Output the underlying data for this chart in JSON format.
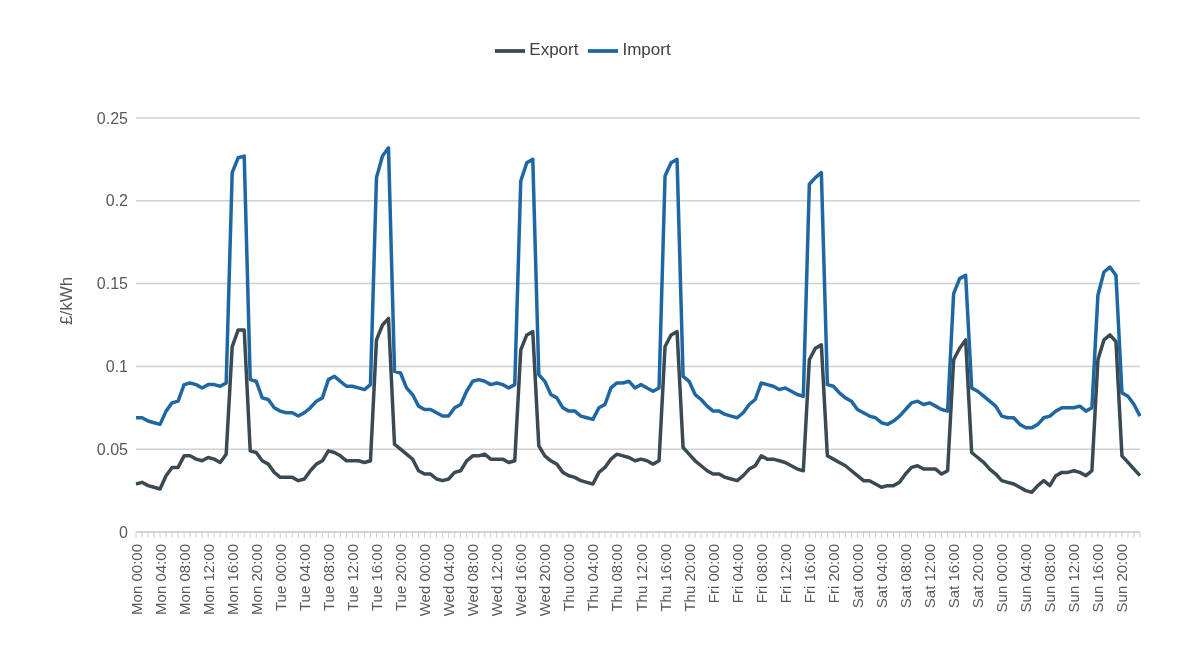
{
  "chart_data": {
    "type": "line",
    "ylabel": "£/kWh",
    "categories": [
      "Mon 00:00",
      null,
      null,
      null,
      "Mon 04:00",
      null,
      null,
      null,
      "Mon 08:00",
      null,
      null,
      null,
      "Mon 12:00",
      null,
      null,
      null,
      "Mon 16:00",
      null,
      null,
      null,
      "Mon 20:00",
      null,
      null,
      null,
      "Tue 00:00",
      null,
      null,
      null,
      "Tue 04:00",
      null,
      null,
      null,
      "Tue 08:00",
      null,
      null,
      null,
      "Tue 12:00",
      null,
      null,
      null,
      "Tue 16:00",
      null,
      null,
      null,
      "Tue 20:00",
      null,
      null,
      null,
      "Wed 00:00",
      null,
      null,
      null,
      "Wed 04:00",
      null,
      null,
      null,
      "Wed 08:00",
      null,
      null,
      null,
      "Wed 12:00",
      null,
      null,
      null,
      "Wed 16:00",
      null,
      null,
      null,
      "Wed 20:00",
      null,
      null,
      null,
      "Thu 00:00",
      null,
      null,
      null,
      "Thu 04:00",
      null,
      null,
      null,
      "Thu 08:00",
      null,
      null,
      null,
      "Thu 12:00",
      null,
      null,
      null,
      "Thu 16:00",
      null,
      null,
      null,
      "Thu 20:00",
      null,
      null,
      null,
      "Fri 00:00",
      null,
      null,
      null,
      "Fri 04:00",
      null,
      null,
      null,
      "Fri 08:00",
      null,
      null,
      null,
      "Fri 12:00",
      null,
      null,
      null,
      "Fri 16:00",
      null,
      null,
      null,
      "Fri 20:00",
      null,
      null,
      null,
      "Sat 00:00",
      null,
      null,
      null,
      "Sat 04:00",
      null,
      null,
      null,
      "Sat 08:00",
      null,
      null,
      null,
      "Sat 12:00",
      null,
      null,
      null,
      "Sat 16:00",
      null,
      null,
      null,
      "Sat 20:00",
      null,
      null,
      null,
      "Sun 00:00",
      null,
      null,
      null,
      "Sun 04:00",
      null,
      null,
      null,
      "Sun 08:00",
      null,
      null,
      null,
      "Sun 12:00",
      null,
      null,
      null,
      "Sun 16:00",
      null,
      null,
      null,
      "Sun 20:00",
      null,
      null,
      null
    ],
    "series": [
      {
        "name": "Import",
        "color": "#1f67a3",
        "values": [
          0.069,
          0.069,
          0.067,
          0.066,
          0.065,
          0.073,
          0.078,
          0.079,
          0.089,
          0.09,
          0.089,
          0.087,
          0.089,
          0.089,
          0.088,
          0.09,
          0.217,
          0.226,
          0.227,
          0.092,
          0.091,
          0.081,
          0.08,
          0.075,
          0.073,
          0.072,
          0.072,
          0.07,
          0.072,
          0.075,
          0.079,
          0.081,
          0.092,
          0.094,
          0.091,
          0.088,
          0.088,
          0.087,
          0.086,
          0.089,
          0.214,
          0.227,
          0.232,
          0.097,
          0.096,
          0.087,
          0.083,
          0.076,
          0.074,
          0.074,
          0.072,
          0.07,
          0.07,
          0.075,
          0.077,
          0.085,
          0.091,
          0.092,
          0.091,
          0.089,
          0.09,
          0.089,
          0.087,
          0.089,
          0.212,
          0.223,
          0.225,
          0.095,
          0.091,
          0.083,
          0.081,
          0.075,
          0.073,
          0.073,
          0.07,
          0.069,
          0.068,
          0.075,
          0.077,
          0.087,
          0.09,
          0.09,
          0.091,
          0.087,
          0.089,
          0.087,
          0.085,
          0.087,
          0.215,
          0.223,
          0.225,
          0.094,
          0.091,
          0.083,
          0.08,
          0.076,
          0.073,
          0.073,
          0.071,
          0.07,
          0.069,
          0.072,
          0.077,
          0.08,
          0.09,
          0.089,
          0.088,
          0.086,
          0.087,
          0.085,
          0.083,
          0.082,
          0.21,
          0.214,
          0.217,
          0.089,
          0.088,
          0.084,
          0.081,
          0.079,
          0.074,
          0.072,
          0.07,
          0.069,
          0.066,
          0.065,
          0.067,
          0.07,
          0.074,
          0.078,
          0.079,
          0.077,
          0.078,
          0.076,
          0.074,
          0.073,
          0.144,
          0.153,
          0.155,
          0.087,
          0.085,
          0.082,
          0.079,
          0.076,
          0.07,
          0.069,
          0.069,
          0.065,
          0.063,
          0.063,
          0.065,
          0.069,
          0.07,
          0.073,
          0.075,
          0.075,
          0.075,
          0.076,
          0.073,
          0.075,
          0.143,
          0.157,
          0.16,
          0.155,
          0.084,
          0.082,
          0.077,
          0.07
        ]
      },
      {
        "name": "Export",
        "color": "#3a4a55",
        "values": [
          0.029,
          0.03,
          0.028,
          0.027,
          0.026,
          0.034,
          0.039,
          0.039,
          0.046,
          0.046,
          0.044,
          0.043,
          0.045,
          0.044,
          0.042,
          0.047,
          0.112,
          0.122,
          0.122,
          0.049,
          0.048,
          0.043,
          0.041,
          0.036,
          0.033,
          0.033,
          0.033,
          0.031,
          0.032,
          0.037,
          0.041,
          0.043,
          0.049,
          0.048,
          0.046,
          0.043,
          0.043,
          0.043,
          0.042,
          0.043,
          0.116,
          0.125,
          0.129,
          0.053,
          0.05,
          0.047,
          0.044,
          0.037,
          0.035,
          0.035,
          0.032,
          0.031,
          0.032,
          0.036,
          0.037,
          0.043,
          0.046,
          0.046,
          0.047,
          0.044,
          0.044,
          0.044,
          0.042,
          0.043,
          0.11,
          0.119,
          0.121,
          0.052,
          0.046,
          0.043,
          0.041,
          0.036,
          0.034,
          0.033,
          0.031,
          0.03,
          0.029,
          0.036,
          0.039,
          0.044,
          0.047,
          0.046,
          0.045,
          0.043,
          0.044,
          0.043,
          0.041,
          0.043,
          0.112,
          0.119,
          0.121,
          0.051,
          0.047,
          0.043,
          0.04,
          0.037,
          0.035,
          0.035,
          0.033,
          0.032,
          0.031,
          0.034,
          0.038,
          0.04,
          0.046,
          0.044,
          0.044,
          0.043,
          0.042,
          0.04,
          0.038,
          0.037,
          0.104,
          0.111,
          0.113,
          0.046,
          0.044,
          0.042,
          0.04,
          0.037,
          0.034,
          0.031,
          0.031,
          0.029,
          0.027,
          0.028,
          0.028,
          0.03,
          0.035,
          0.039,
          0.04,
          0.038,
          0.038,
          0.038,
          0.035,
          0.037,
          0.104,
          0.111,
          0.116,
          0.048,
          0.045,
          0.042,
          0.038,
          0.035,
          0.031,
          0.03,
          0.029,
          0.027,
          0.025,
          0.024,
          0.028,
          0.031,
          0.028,
          0.034,
          0.036,
          0.036,
          0.037,
          0.036,
          0.034,
          0.037,
          0.104,
          0.116,
          0.119,
          0.115,
          0.046,
          0.042,
          0.038,
          0.034
        ]
      }
    ],
    "ylim": [
      0,
      0.25
    ],
    "yticks": [
      0,
      0.05,
      0.1,
      0.15,
      0.2,
      0.25
    ],
    "grid": "y",
    "legend": "top"
  }
}
